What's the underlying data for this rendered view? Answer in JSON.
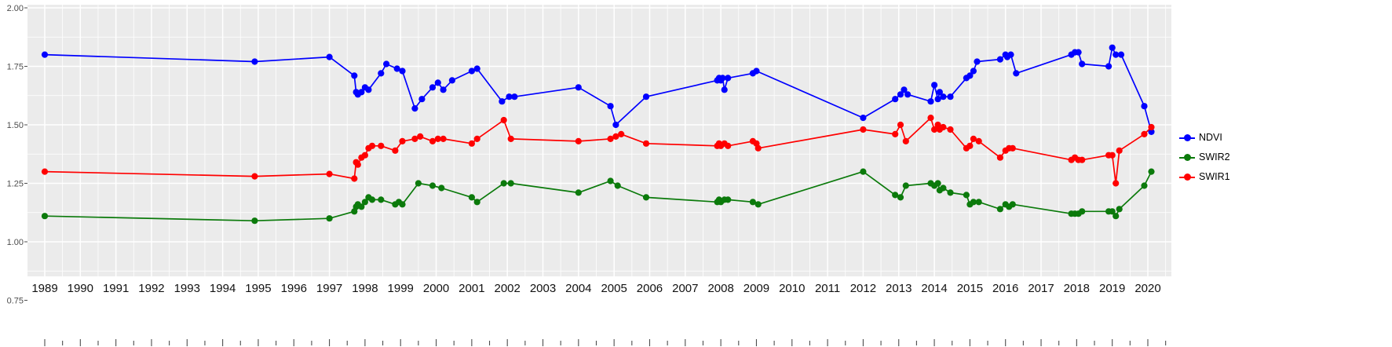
{
  "chart_data": {
    "type": "line",
    "title": "",
    "xlabel": "",
    "ylabel": "",
    "grid": true,
    "legend_position": "right",
    "x_ticks": [
      1989,
      1990,
      1991,
      1992,
      1993,
      1994,
      1995,
      1996,
      1997,
      1998,
      1999,
      2000,
      2001,
      2002,
      2003,
      2004,
      2005,
      2006,
      2007,
      2008,
      2009,
      2010,
      2011,
      2012,
      2013,
      2014,
      2015,
      2016,
      2017,
      2018,
      2019,
      2020
    ],
    "y_ticks": [
      "2.00",
      "1.75",
      "1.50",
      "1.25",
      "1.00",
      "0.75"
    ],
    "y_tick_values": [
      2.0,
      1.75,
      1.5,
      1.25,
      1.0,
      0.75
    ],
    "y_minor_values": [
      1.875,
      1.625,
      1.375,
      1.125,
      0.875
    ],
    "xlim": [
      1988.5,
      2020.65
    ],
    "ylim": [
      0.85,
      2.01
    ],
    "colors": {
      "panel_bg": "#EBEBEB",
      "grid": "#FFFFFF",
      "y_axis_text": "#4D4D4D",
      "x_axis_text": "#111111",
      "tick_mark": "#4D4D4D"
    },
    "series": [
      {
        "name": "NDVI",
        "color": "#0000FF",
        "points": [
          [
            1989.0,
            1.8
          ],
          [
            1994.9,
            1.77
          ],
          [
            1997.0,
            1.79
          ],
          [
            1997.7,
            1.71
          ],
          [
            1997.75,
            1.64
          ],
          [
            1997.8,
            1.63
          ],
          [
            1997.9,
            1.64
          ],
          [
            1998.0,
            1.66
          ],
          [
            1998.1,
            1.65
          ],
          [
            1998.45,
            1.72
          ],
          [
            1998.6,
            1.76
          ],
          [
            1998.9,
            1.74
          ],
          [
            1999.05,
            1.73
          ],
          [
            1999.4,
            1.57
          ],
          [
            1999.6,
            1.61
          ],
          [
            1999.9,
            1.66
          ],
          [
            2000.05,
            1.68
          ],
          [
            2000.2,
            1.65
          ],
          [
            2000.45,
            1.69
          ],
          [
            2001.0,
            1.73
          ],
          [
            2001.15,
            1.74
          ],
          [
            2001.85,
            1.6
          ],
          [
            2002.05,
            1.62
          ],
          [
            2002.2,
            1.62
          ],
          [
            2004.0,
            1.66
          ],
          [
            2004.9,
            1.58
          ],
          [
            2005.05,
            1.5
          ],
          [
            2005.9,
            1.62
          ],
          [
            2007.9,
            1.69
          ],
          [
            2007.95,
            1.7
          ],
          [
            2008.0,
            1.69
          ],
          [
            2008.05,
            1.7
          ],
          [
            2008.1,
            1.65
          ],
          [
            2008.2,
            1.7
          ],
          [
            2008.9,
            1.72
          ],
          [
            2009.0,
            1.73
          ],
          [
            2012.0,
            1.53
          ],
          [
            2012.9,
            1.61
          ],
          [
            2013.05,
            1.63
          ],
          [
            2013.15,
            1.65
          ],
          [
            2013.25,
            1.63
          ],
          [
            2013.9,
            1.6
          ],
          [
            2014.0,
            1.67
          ],
          [
            2014.1,
            1.61
          ],
          [
            2014.15,
            1.64
          ],
          [
            2014.25,
            1.62
          ],
          [
            2014.45,
            1.62
          ],
          [
            2014.9,
            1.7
          ],
          [
            2015.0,
            1.71
          ],
          [
            2015.1,
            1.73
          ],
          [
            2015.2,
            1.77
          ],
          [
            2015.85,
            1.78
          ],
          [
            2016.0,
            1.8
          ],
          [
            2016.05,
            1.79
          ],
          [
            2016.15,
            1.8
          ],
          [
            2016.3,
            1.72
          ],
          [
            2017.85,
            1.8
          ],
          [
            2017.95,
            1.81
          ],
          [
            2018.05,
            1.81
          ],
          [
            2018.15,
            1.76
          ],
          [
            2018.9,
            1.75
          ],
          [
            2019.0,
            1.83
          ],
          [
            2019.1,
            1.8
          ],
          [
            2019.25,
            1.8
          ],
          [
            2019.9,
            1.58
          ],
          [
            2020.1,
            1.47
          ]
        ]
      },
      {
        "name": "SWIR2",
        "color": "#0B7A0B",
        "points": [
          [
            1989.0,
            1.11
          ],
          [
            1994.9,
            1.09
          ],
          [
            1997.0,
            1.1
          ],
          [
            1997.7,
            1.13
          ],
          [
            1997.75,
            1.15
          ],
          [
            1997.8,
            1.16
          ],
          [
            1997.9,
            1.15
          ],
          [
            1998.0,
            1.17
          ],
          [
            1998.1,
            1.19
          ],
          [
            1998.2,
            1.18
          ],
          [
            1998.45,
            1.18
          ],
          [
            1998.85,
            1.16
          ],
          [
            1998.95,
            1.17
          ],
          [
            1999.05,
            1.16
          ],
          [
            1999.5,
            1.25
          ],
          [
            1999.9,
            1.24
          ],
          [
            2000.15,
            1.23
          ],
          [
            2001.0,
            1.19
          ],
          [
            2001.15,
            1.17
          ],
          [
            2001.9,
            1.25
          ],
          [
            2002.1,
            1.25
          ],
          [
            2004.0,
            1.21
          ],
          [
            2004.9,
            1.26
          ],
          [
            2005.1,
            1.24
          ],
          [
            2005.9,
            1.19
          ],
          [
            2007.9,
            1.17
          ],
          [
            2007.95,
            1.18
          ],
          [
            2008.0,
            1.17
          ],
          [
            2008.1,
            1.18
          ],
          [
            2008.2,
            1.18
          ],
          [
            2008.9,
            1.17
          ],
          [
            2009.05,
            1.16
          ],
          [
            2012.0,
            1.3
          ],
          [
            2012.9,
            1.2
          ],
          [
            2013.05,
            1.19
          ],
          [
            2013.2,
            1.24
          ],
          [
            2013.9,
            1.25
          ],
          [
            2014.0,
            1.24
          ],
          [
            2014.1,
            1.25
          ],
          [
            2014.15,
            1.22
          ],
          [
            2014.25,
            1.23
          ],
          [
            2014.45,
            1.21
          ],
          [
            2014.9,
            1.2
          ],
          [
            2015.0,
            1.16
          ],
          [
            2015.1,
            1.17
          ],
          [
            2015.25,
            1.17
          ],
          [
            2015.85,
            1.14
          ],
          [
            2016.0,
            1.16
          ],
          [
            2016.1,
            1.15
          ],
          [
            2016.2,
            1.16
          ],
          [
            2017.85,
            1.12
          ],
          [
            2017.95,
            1.12
          ],
          [
            2018.05,
            1.12
          ],
          [
            2018.15,
            1.13
          ],
          [
            2018.9,
            1.13
          ],
          [
            2019.0,
            1.13
          ],
          [
            2019.1,
            1.11
          ],
          [
            2019.2,
            1.14
          ],
          [
            2019.9,
            1.24
          ],
          [
            2020.1,
            1.3
          ]
        ]
      },
      {
        "name": "SWIR1",
        "color": "#FF0000",
        "points": [
          [
            1989.0,
            1.3
          ],
          [
            1994.9,
            1.28
          ],
          [
            1997.0,
            1.29
          ],
          [
            1997.7,
            1.27
          ],
          [
            1997.75,
            1.34
          ],
          [
            1997.8,
            1.33
          ],
          [
            1997.9,
            1.36
          ],
          [
            1998.0,
            1.37
          ],
          [
            1998.1,
            1.4
          ],
          [
            1998.2,
            1.41
          ],
          [
            1998.45,
            1.41
          ],
          [
            1998.85,
            1.39
          ],
          [
            1999.05,
            1.43
          ],
          [
            1999.4,
            1.44
          ],
          [
            1999.55,
            1.45
          ],
          [
            1999.9,
            1.43
          ],
          [
            2000.05,
            1.44
          ],
          [
            2000.2,
            1.44
          ],
          [
            2001.0,
            1.42
          ],
          [
            2001.15,
            1.44
          ],
          [
            2001.9,
            1.52
          ],
          [
            2002.1,
            1.44
          ],
          [
            2004.0,
            1.43
          ],
          [
            2004.9,
            1.44
          ],
          [
            2005.05,
            1.45
          ],
          [
            2005.2,
            1.46
          ],
          [
            2005.9,
            1.42
          ],
          [
            2007.9,
            1.41
          ],
          [
            2007.95,
            1.42
          ],
          [
            2008.0,
            1.41
          ],
          [
            2008.1,
            1.42
          ],
          [
            2008.2,
            1.41
          ],
          [
            2008.9,
            1.43
          ],
          [
            2009.0,
            1.42
          ],
          [
            2009.05,
            1.4
          ],
          [
            2012.0,
            1.48
          ],
          [
            2012.9,
            1.46
          ],
          [
            2013.05,
            1.5
          ],
          [
            2013.2,
            1.43
          ],
          [
            2013.9,
            1.53
          ],
          [
            2014.0,
            1.48
          ],
          [
            2014.1,
            1.5
          ],
          [
            2014.15,
            1.48
          ],
          [
            2014.25,
            1.49
          ],
          [
            2014.45,
            1.48
          ],
          [
            2014.9,
            1.4
          ],
          [
            2015.0,
            1.41
          ],
          [
            2015.1,
            1.44
          ],
          [
            2015.25,
            1.43
          ],
          [
            2015.85,
            1.36
          ],
          [
            2016.0,
            1.39
          ],
          [
            2016.1,
            1.4
          ],
          [
            2016.2,
            1.4
          ],
          [
            2017.85,
            1.35
          ],
          [
            2017.95,
            1.36
          ],
          [
            2018.05,
            1.35
          ],
          [
            2018.15,
            1.35
          ],
          [
            2018.9,
            1.37
          ],
          [
            2019.0,
            1.37
          ],
          [
            2019.1,
            1.25
          ],
          [
            2019.2,
            1.39
          ],
          [
            2019.9,
            1.46
          ],
          [
            2020.1,
            1.49
          ]
        ]
      }
    ],
    "legend": {
      "items": [
        {
          "label": "NDVI",
          "color": "#0000FF"
        },
        {
          "label": "SWIR2",
          "color": "#0B7A0B"
        },
        {
          "label": "SWIR1",
          "color": "#FF0000"
        }
      ]
    }
  }
}
